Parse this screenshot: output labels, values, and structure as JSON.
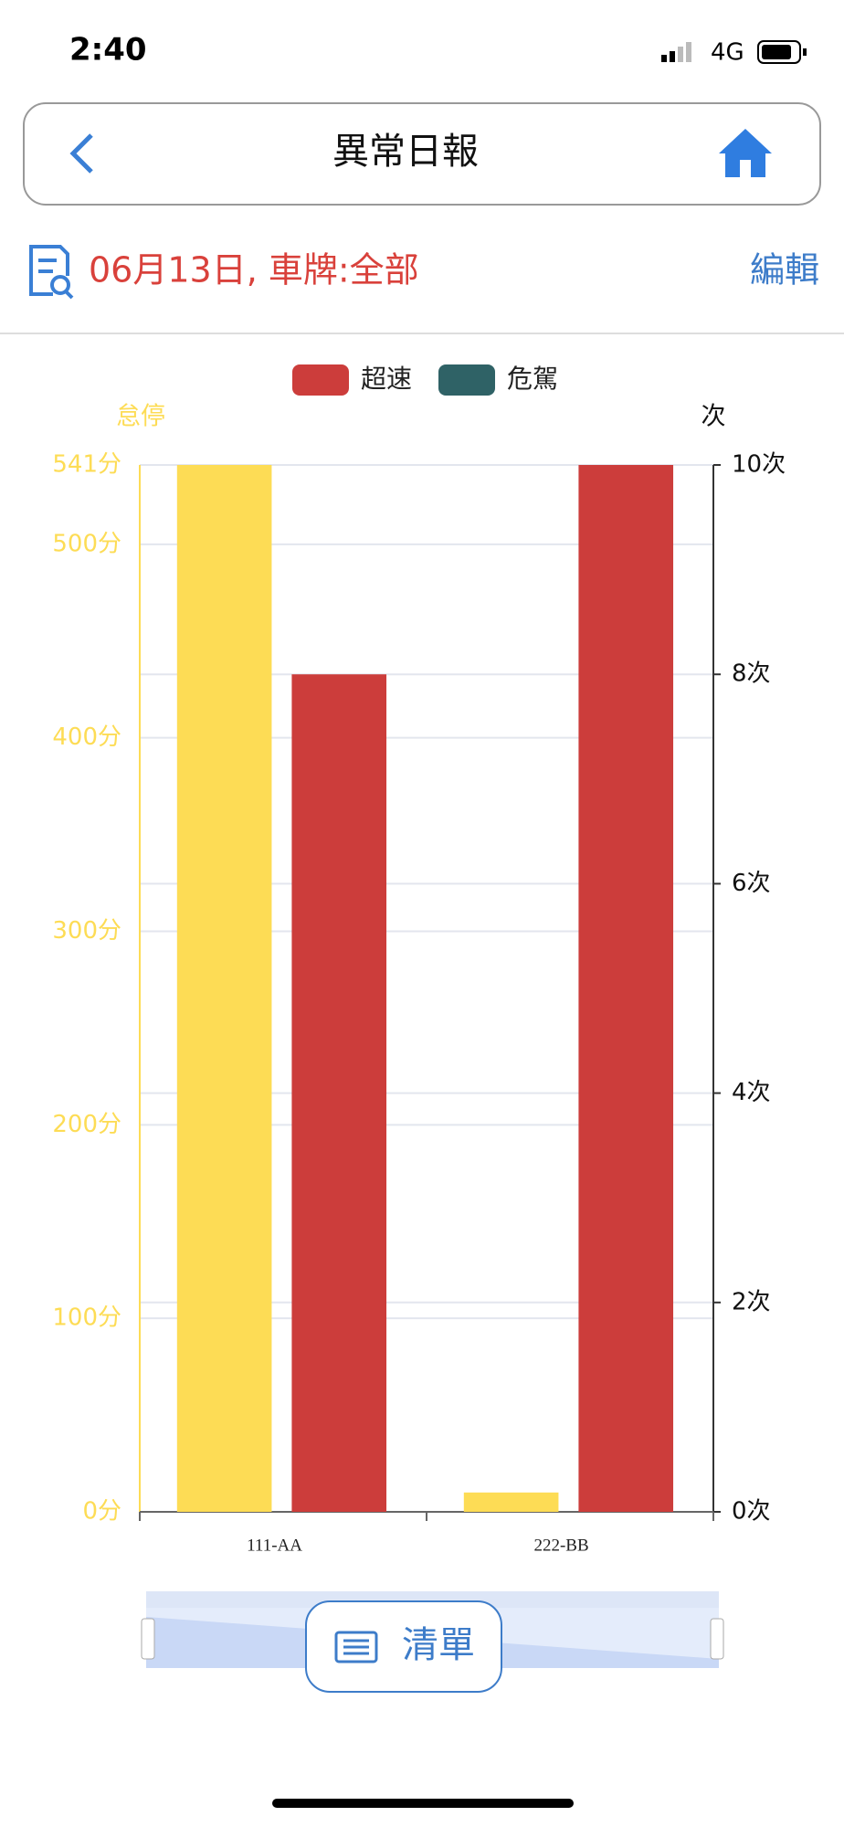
{
  "status_bar": {
    "time": "2:40",
    "network": "4G"
  },
  "header": {
    "title": "異常日報"
  },
  "subheader": {
    "summary": "06月13日, 車牌:全部",
    "action": "編輯"
  },
  "chart_data": {
    "type": "bar",
    "categories": [
      "111-AA",
      "222-BB"
    ],
    "y_label": "怠停",
    "y2_label": "次",
    "series": [
      {
        "color": "#fddc55",
        "values": [
          541,
          10
        ]
      },
      {
        "name": "超速",
        "color": "#cc3d3b",
        "values": [
          8,
          10
        ],
        "axis": "y2"
      },
      {
        "name": "危駕",
        "color": "#2f6266",
        "values": [
          0,
          0
        ],
        "axis": "y2"
      }
    ],
    "ylim": [
      0,
      541
    ],
    "yticks": [
      {
        "value": 0,
        "label": "0分"
      },
      {
        "value": 100,
        "label": "100分"
      },
      {
        "value": 200,
        "label": "200分"
      },
      {
        "value": 300,
        "label": "300分"
      },
      {
        "value": 400,
        "label": "400分"
      },
      {
        "value": 500,
        "label": "500分"
      },
      {
        "value": 541,
        "label": "541分"
      }
    ],
    "y2lim": [
      0,
      10
    ],
    "y2ticks": [
      {
        "value": 0,
        "label": "0次"
      },
      {
        "value": 2,
        "label": "2次"
      },
      {
        "value": 4,
        "label": "4次"
      },
      {
        "value": 6,
        "label": "6次"
      },
      {
        "value": 8,
        "label": "8次"
      },
      {
        "value": 10,
        "label": "10次"
      }
    ],
    "grid": true,
    "legend": "top"
  },
  "footer": {
    "button": "清單"
  }
}
